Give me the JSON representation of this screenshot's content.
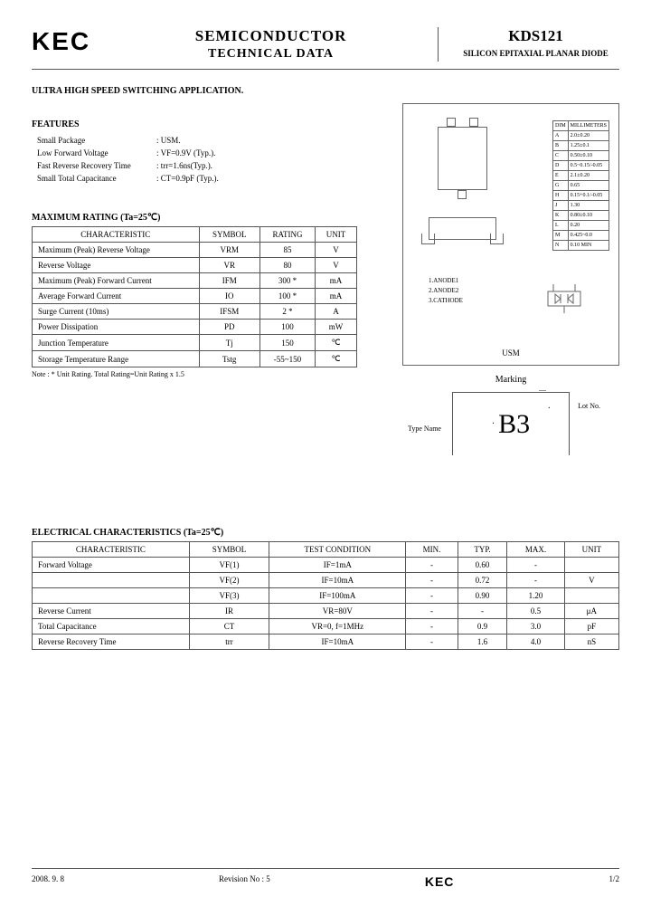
{
  "header": {
    "logo": "KEC",
    "title_main": "SEMICONDUCTOR",
    "title_sub": "TECHNICAL DATA",
    "part_number": "KDS121",
    "part_desc": "SILICON EPITAXIAL PLANAR DIODE"
  },
  "application": "ULTRA HIGH SPEED SWITCHING APPLICATION.",
  "features": {
    "heading": "FEATURES",
    "rows": [
      [
        "Small Package",
        ": USM."
      ],
      [
        "Low Forward Voltage",
        ": VF=0.9V (Typ.)."
      ],
      [
        "Fast Reverse Recovery Time",
        ": trr=1.6ns(Typ.)."
      ],
      [
        "Small Total Capacitance",
        ": CT=0.9pF (Typ.)."
      ]
    ]
  },
  "ratings": {
    "heading": "MAXIMUM RATING (Ta=25℃)",
    "columns": [
      "CHARACTERISTIC",
      "SYMBOL",
      "RATING",
      "UNIT"
    ],
    "rows": [
      [
        "Maximum (Peak) Reverse Voltage",
        "VRM",
        "85",
        "V"
      ],
      [
        "Reverse Voltage",
        "VR",
        "80",
        "V"
      ],
      [
        "Maximum (Peak) Forward Current",
        "IFM",
        "300 *",
        "mA"
      ],
      [
        "Average Forward Current",
        "IO",
        "100 *",
        "mA"
      ],
      [
        "Surge Current (10ms)",
        "IFSM",
        "2 *",
        "A"
      ],
      [
        "Power Dissipation",
        "PD",
        "100",
        "mW"
      ],
      [
        "Junction Temperature",
        "Tj",
        "150",
        "℃"
      ],
      [
        "Storage Temperature Range",
        "Tstg",
        "-55~150",
        "℃"
      ]
    ],
    "note": "Note : * Unit Rating.  Total Rating=Unit Rating x 1.5"
  },
  "package": {
    "label": "USM",
    "pins": [
      "1.ANODE1",
      "2.ANODE2",
      "3.CATHODE"
    ],
    "dims": {
      "header": [
        "DIM",
        "MILLIMETERS"
      ],
      "rows": [
        [
          "A",
          "2.0±0.20"
        ],
        [
          "B",
          "1.25±0.1"
        ],
        [
          "C",
          "0.50±0.10"
        ],
        [
          "D",
          "0.5~0.15/-0.05"
        ],
        [
          "E",
          "2.1±0.20"
        ],
        [
          "G",
          "0.65"
        ],
        [
          "H",
          "0.15+0.1/-0.05"
        ],
        [
          "J",
          "1.30"
        ],
        [
          "K",
          "0.80±0.10"
        ],
        [
          "L",
          "0.20"
        ],
        [
          "M",
          "0.425~0.0"
        ],
        [
          "N",
          "0.10 MIN"
        ]
      ]
    }
  },
  "marking": {
    "heading": "Marking",
    "type_label": "Type Name",
    "lot_label": "Lot No.",
    "code": "B3"
  },
  "electrical": {
    "heading": "ELECTRICAL CHARACTERISTICS (Ta=25℃)",
    "columns": [
      "CHARACTERISTIC",
      "SYMBOL",
      "TEST CONDITION",
      "MIN.",
      "TYP.",
      "MAX.",
      "UNIT"
    ],
    "rows": [
      [
        "Forward Voltage",
        "VF(1)",
        "IF=1mA",
        "-",
        "0.60",
        "-",
        ""
      ],
      [
        "",
        "VF(2)",
        "IF=10mA",
        "-",
        "0.72",
        "-",
        "V"
      ],
      [
        "",
        "VF(3)",
        "IF=100mA",
        "-",
        "0.90",
        "1.20",
        ""
      ],
      [
        "Reverse Current",
        "IR",
        "VR=80V",
        "-",
        "-",
        "0.5",
        "μA"
      ],
      [
        "Total Capacitance",
        "CT",
        "VR=0, f=1MHz",
        "-",
        "0.9",
        "3.0",
        "pF"
      ],
      [
        "Reverse Recovery Time",
        "trr",
        "IF=10mA",
        "-",
        "1.6",
        "4.0",
        "nS"
      ]
    ]
  },
  "footer": {
    "date": "2008. 9. 8",
    "revision": "Revision No : 5",
    "logo": "KEC",
    "page": "1/2"
  }
}
